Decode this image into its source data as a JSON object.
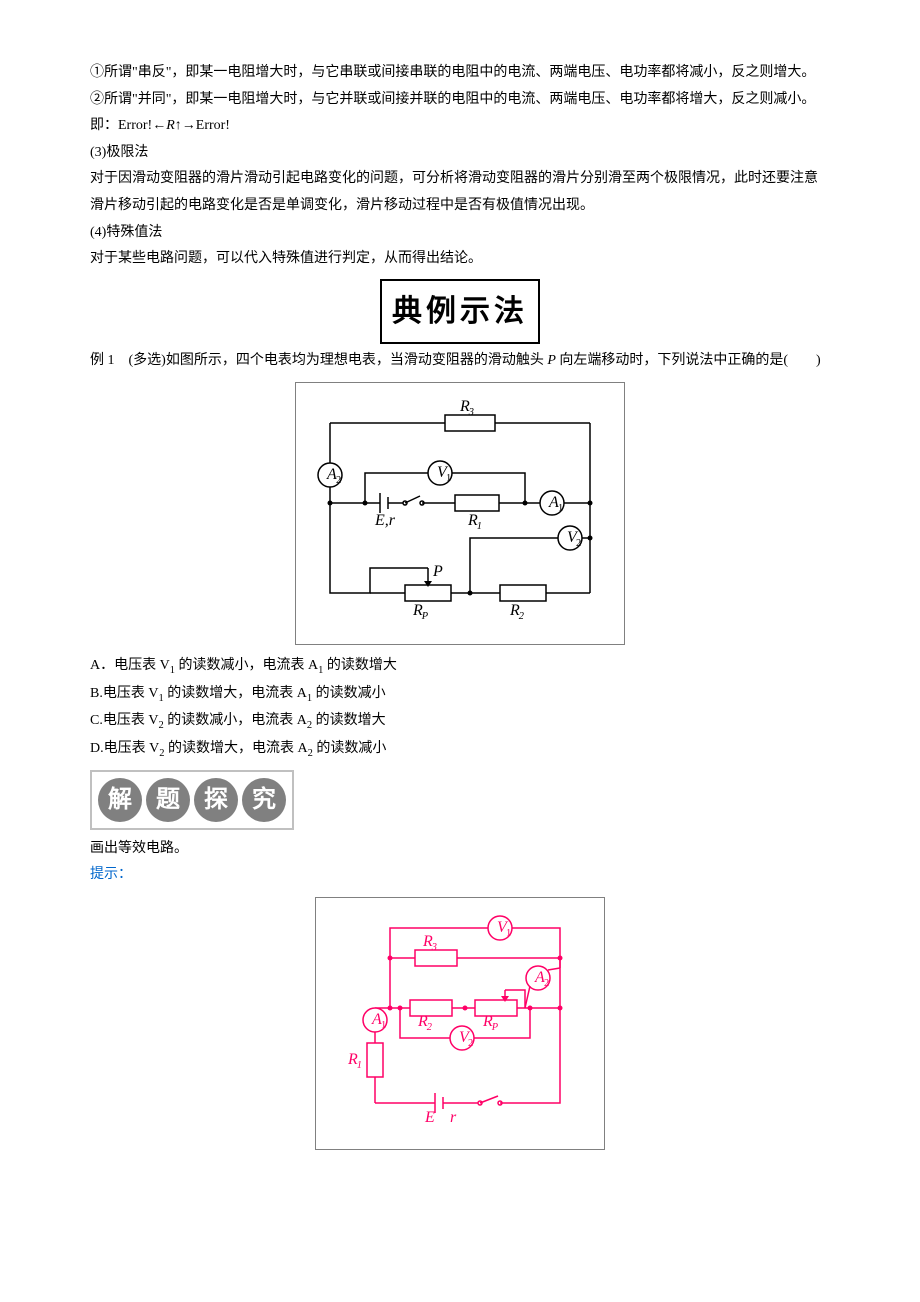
{
  "para1": "①所谓\"串反\"，即某一电阻增大时，与它串联或间接串联的电阻中的电流、两端电压、电功率都将减小，反之则增大。",
  "para2": "②所谓\"并同\"，即某一电阻增大时，与它并联或间接并联的电阻中的电流、两端电压、电功率都将增大，反之则减小。",
  "para3_prefix": "即：Error!←",
  "para3_var": "R",
  "para3_suffix": "↑→Error!",
  "sec3_title": "(3)极限法",
  "sec3_body": "对于因滑动变阻器的滑片滑动引起电路变化的问题，可分析将滑动变阻器的滑片分别滑至两个极限情况，此时还要注意滑片移动引起的电路变化是否是单调变化，滑片移动过程中是否有极值情况出现。",
  "sec4_title": "(4)特殊值法",
  "sec4_body": "对于某些电路问题，可以代入特殊值进行判定，从而得出结论。",
  "banner1": "典例示法",
  "example1_prefix": "例 1　(多选)如图所示，四个电表均为理想电表，当滑动变阻器的滑动触头 ",
  "example1_var": "P",
  "example1_suffix": " 向左端移动时，下列说法中正确的是(　　)",
  "options": {
    "A_prefix": "A．电压表 V",
    "A_sub1": "1",
    "A_mid": " 的读数减小，电流表 A",
    "A_sub2": "1",
    "A_end": " 的读数增大",
    "B_prefix": "B.电压表 V",
    "B_sub1": "1",
    "B_mid": " 的读数增大，电流表 A",
    "B_sub2": "1",
    "B_end": " 的读数减小",
    "C_prefix": "C.电压表 V",
    "C_sub1": "2",
    "C_mid": " 的读数减小，电流表 A",
    "C_sub2": "2",
    "C_end": " 的读数增大",
    "D_prefix": "D.电压表 V",
    "D_sub1": "2",
    "D_mid": " 的读数增大，电流表 A",
    "D_sub2": "2",
    "D_end": " 的读数减小"
  },
  "banner2": [
    "解",
    "题",
    "探",
    "究"
  ],
  "task": "画出等效电路。",
  "hint_label": "提示：",
  "circuit1": {
    "labels": {
      "R3": "R",
      "R3_sub": "3",
      "A2": "A",
      "A2_sub": "2",
      "V1": "V",
      "V1_sub": "1",
      "A1": "A",
      "A1_sub": "1",
      "Er": "E,r",
      "R1": "R",
      "R1_sub": "1",
      "V2": "V",
      "V2_sub": "2",
      "P": "P",
      "RP": "R",
      "RP_sub": "P",
      "R2": "R",
      "R2_sub": "2"
    },
    "stroke": "#000000",
    "fill": "#ffffff",
    "font_family": "Times New Roman",
    "font_size": 16,
    "box_border": "#808080"
  },
  "circuit2": {
    "labels": {
      "V1": "V",
      "V1_sub": "1",
      "R3": "R",
      "R3_sub": "3",
      "A2": "A",
      "A2_sub": "2",
      "R2": "R",
      "R2_sub": "2",
      "RP": "R",
      "RP_sub": "P",
      "A1": "A",
      "A1_sub": "1",
      "V2": "V",
      "V2_sub": "2",
      "R1": "R",
      "R1_sub": "1",
      "E": "E",
      "r": "r"
    },
    "stroke": "#ff0066",
    "fill": "#ffffff",
    "font_family": "Times New Roman",
    "font_size": 16,
    "box_border": "#808080"
  }
}
